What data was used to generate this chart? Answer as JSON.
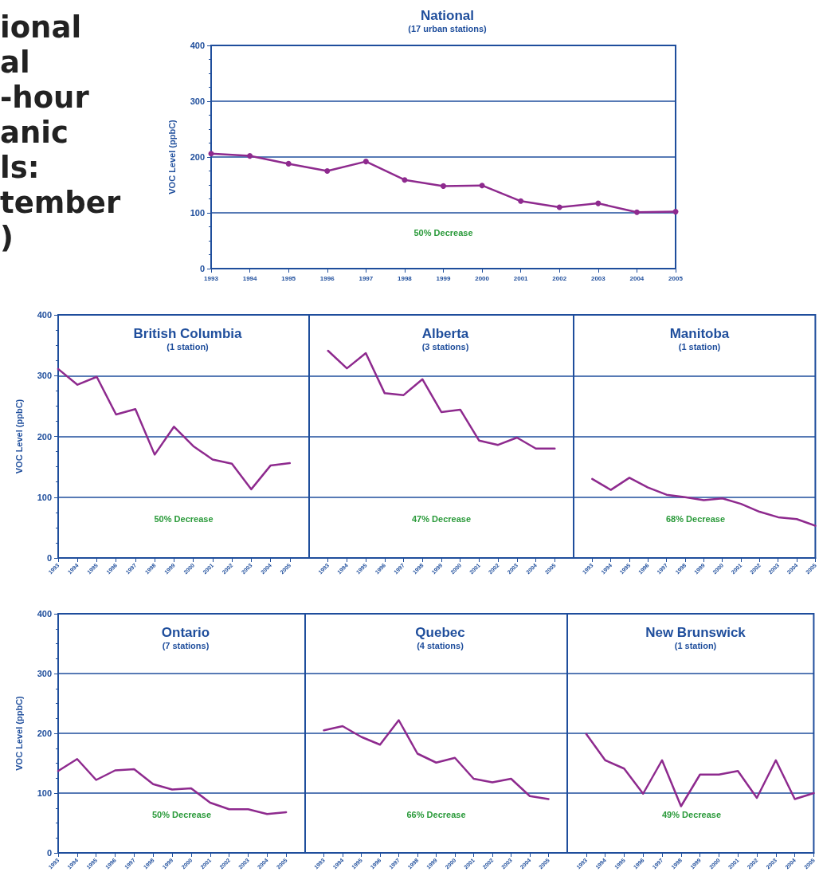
{
  "chart_data": [
    {
      "type": "line",
      "title": "National",
      "subtitle": "(17 urban stations)",
      "ylabel": "VOC Level (ppbC)",
      "x": [
        1993,
        1994,
        1995,
        1996,
        1997,
        1998,
        1999,
        2000,
        2001,
        2002,
        2003,
        2004,
        2005
      ],
      "series": [
        {
          "color": "#8e2a8e",
          "values": [
            206,
            202,
            188,
            175,
            192,
            159,
            148,
            149,
            121,
            110,
            117,
            101,
            102
          ]
        }
      ],
      "xlim": [
        1993,
        2005
      ],
      "xticks": [
        1993,
        1994,
        1995,
        1996,
        1997,
        1998,
        1999,
        2000,
        2001,
        2002,
        2003,
        2004,
        2005
      ],
      "ylim": [
        0,
        400
      ],
      "yticks": [
        0,
        100,
        200,
        300,
        400
      ],
      "grid": "y",
      "marker": "circle",
      "line_style": "solid",
      "annotations": [
        "50% Decrease",
        "ional\nal\n-hour\nanic\nls:\ntember\n)"
      ]
    },
    {
      "type": "line",
      "title": "British Columbia",
      "subtitle": "(1 station)",
      "ylabel": "VOC Level (ppbC)",
      "x": [
        1993,
        1994,
        1995,
        1996,
        1997,
        1998,
        1999,
        2000,
        2001,
        2002,
        2003,
        2004,
        2005
      ],
      "series": [
        {
          "color": "#8e2a8e",
          "values": [
            311,
            285,
            298,
            236,
            245,
            170,
            216,
            184,
            162,
            155,
            113,
            152,
            156
          ]
        }
      ],
      "xlim": [
        1993,
        2006
      ],
      "xticks": [
        1993,
        1994,
        1995,
        1996,
        1997,
        1998,
        1999,
        2000,
        2001,
        2002,
        2003,
        2004,
        2005
      ],
      "ylim": [
        0,
        400
      ],
      "yticks": [
        0,
        100,
        200,
        300,
        400
      ],
      "grid": "y",
      "marker": "none",
      "line_style": "solid",
      "annotations": [
        "50% Decrease"
      ]
    },
    {
      "type": "line",
      "title": "Alberta",
      "subtitle": "(3 stations)",
      "x": [
        1993,
        1994,
        1995,
        1996,
        1997,
        1998,
        1999,
        2000,
        2001,
        2002,
        2003,
        2004,
        2005
      ],
      "series": [
        {
          "color": "#8e2a8e",
          "values": [
            341,
            312,
            337,
            271,
            268,
            294,
            240,
            244,
            193,
            186,
            198,
            180,
            180
          ]
        }
      ],
      "xlim": [
        1992,
        2006
      ],
      "xticks": [
        1993,
        1994,
        1995,
        1996,
        1997,
        1998,
        1999,
        2000,
        2001,
        2002,
        2003,
        2004,
        2005
      ],
      "ylim": [
        0,
        400
      ],
      "yticks": [
        0,
        100,
        200,
        300,
        400
      ],
      "grid": "y",
      "marker": "none",
      "line_style": "solid",
      "tick_labels": "x",
      "annotations": [
        "47% Decrease"
      ]
    },
    {
      "type": "line",
      "title": "Manitoba",
      "subtitle": "(1 station)",
      "x": [
        1993,
        1994,
        1995,
        1996,
        1997,
        1998,
        1999,
        2000,
        2001,
        2002,
        2003,
        2004,
        2005
      ],
      "series": [
        {
          "color": "#8e2a8e",
          "values": [
            130,
            112,
            132,
            116,
            104,
            100,
            95,
            98,
            89,
            76,
            67,
            64,
            53
          ]
        }
      ],
      "xlim": [
        1992,
        2005
      ],
      "xticks": [
        1993,
        1994,
        1995,
        1996,
        1997,
        1998,
        1999,
        2000,
        2001,
        2002,
        2003,
        2004,
        2005
      ],
      "ylim": [
        0,
        400
      ],
      "yticks": [
        0,
        100,
        200,
        300,
        400
      ],
      "grid": "y",
      "marker": "none",
      "line_style": "solid",
      "tick_labels": "x",
      "annotations": [
        "68% Decrease"
      ]
    },
    {
      "type": "line",
      "title": "Ontario",
      "subtitle": "(7 stations)",
      "ylabel": "VOC Level (ppbC)",
      "x": [
        1993,
        1994,
        1995,
        1996,
        1997,
        1998,
        1999,
        2000,
        2001,
        2002,
        2003,
        2004,
        2005
      ],
      "series": [
        {
          "color": "#8e2a8e",
          "values": [
            137,
            157,
            122,
            138,
            140,
            115,
            106,
            108,
            84,
            73,
            73,
            65,
            68
          ]
        }
      ],
      "xlim": [
        1993,
        2006
      ],
      "xticks": [
        1993,
        1994,
        1995,
        1996,
        1997,
        1998,
        1999,
        2000,
        2001,
        2002,
        2003,
        2004,
        2005
      ],
      "ylim": [
        0,
        400
      ],
      "yticks": [
        0,
        100,
        200,
        300,
        400
      ],
      "grid": "y",
      "marker": "none",
      "line_style": "solid",
      "annotations": [
        "50% Decrease"
      ]
    },
    {
      "type": "line",
      "title": "Quebec",
      "subtitle": "(4 stations)",
      "x": [
        1993,
        1994,
        1995,
        1996,
        1997,
        1998,
        1999,
        2000,
        2001,
        2002,
        2003,
        2004,
        2005
      ],
      "series": [
        {
          "color": "#8e2a8e",
          "values": [
            205,
            212,
            194,
            181,
            222,
            166,
            151,
            159,
            124,
            118,
            124,
            95,
            90
          ]
        }
      ],
      "xlim": [
        1992,
        2006
      ],
      "xticks": [
        1993,
        1994,
        1995,
        1996,
        1997,
        1998,
        1999,
        2000,
        2001,
        2002,
        2003,
        2004,
        2005
      ],
      "ylim": [
        0,
        400
      ],
      "yticks": [
        0,
        100,
        200,
        300,
        400
      ],
      "grid": "y",
      "marker": "none",
      "line_style": "solid",
      "tick_labels": "x",
      "annotations": [
        "66% Decrease"
      ]
    },
    {
      "type": "line",
      "title": "New Brunswick",
      "subtitle": "(1 station)",
      "x": [
        1993,
        1994,
        1995,
        1996,
        1997,
        1998,
        1999,
        2000,
        2001,
        2002,
        2003,
        2004,
        2005
      ],
      "series": [
        {
          "color": "#8e2a8e",
          "values": [
            199,
            155,
            141,
            99,
            155,
            78,
            131,
            131,
            137,
            92,
            155,
            90,
            100
          ]
        }
      ],
      "xlim": [
        1992,
        2005
      ],
      "xticks": [
        1993,
        1994,
        1995,
        1996,
        1997,
        1998,
        1999,
        2000,
        2001,
        2002,
        2003,
        2004,
        2005
      ],
      "ylim": [
        0,
        400
      ],
      "yticks": [
        0,
        100,
        200,
        300,
        400
      ],
      "grid": "y",
      "marker": "none",
      "line_style": "solid",
      "tick_labels": "x",
      "annotations": [
        "49% Decrease"
      ]
    }
  ]
}
